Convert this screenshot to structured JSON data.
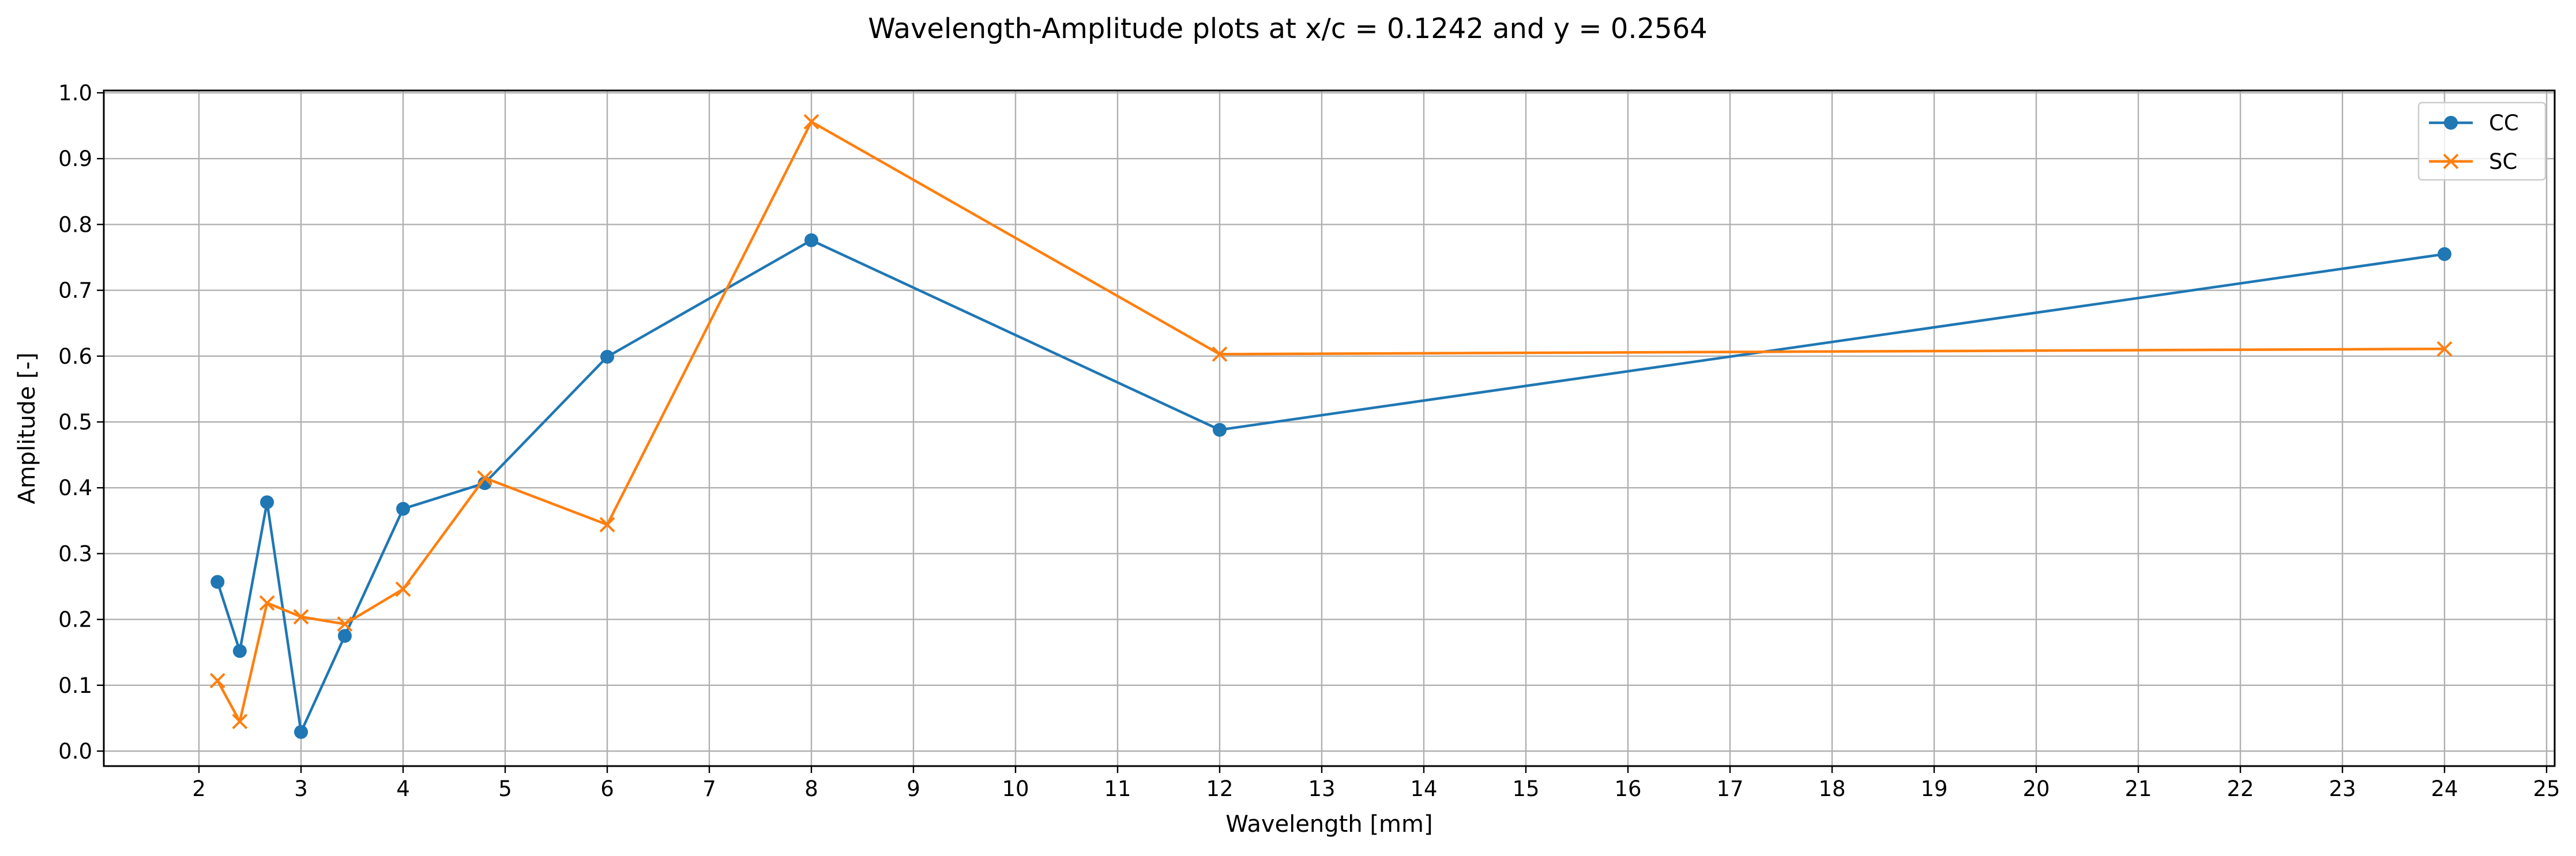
{
  "chart_data": {
    "type": "line",
    "title": "Wavelength-Amplitude plots at x/c = 0.1242 and y = 0.2564",
    "xlabel": "Wavelength [mm]",
    "ylabel": "Amplitude [-]",
    "x_ticks": [
      "2",
      "3",
      "4",
      "5",
      "6",
      "7",
      "8",
      "9",
      "10",
      "11",
      "12",
      "13",
      "14",
      "15",
      "16",
      "17",
      "18",
      "19",
      "20",
      "21",
      "22",
      "23",
      "24",
      "25"
    ],
    "y_ticks": [
      "0.0",
      "0.1",
      "0.2",
      "0.3",
      "0.4",
      "0.5",
      "0.6",
      "0.7",
      "0.8",
      "0.9",
      "1.0"
    ],
    "x_scale": "categorical-spacing",
    "y_range": [
      0.0,
      1.0
    ],
    "grid": true,
    "legend_position": "top-right",
    "x": [
      2.182,
      2.4,
      2.667,
      3.0,
      3.429,
      4.0,
      4.8,
      6.0,
      8.0,
      12.0,
      24.0
    ],
    "series": [
      {
        "name": "CC",
        "color": "#1f77b4",
        "marker": "circle",
        "values": [
          0.257,
          0.152,
          0.378,
          0.029,
          0.175,
          0.368,
          0.407,
          0.599,
          0.776,
          0.488,
          0.755
        ]
      },
      {
        "name": "SC",
        "color": "#ff7f0e",
        "marker": "x",
        "values": [
          0.107,
          0.045,
          0.225,
          0.204,
          0.193,
          0.246,
          0.415,
          0.344,
          0.956,
          0.603,
          0.611
        ]
      }
    ]
  }
}
